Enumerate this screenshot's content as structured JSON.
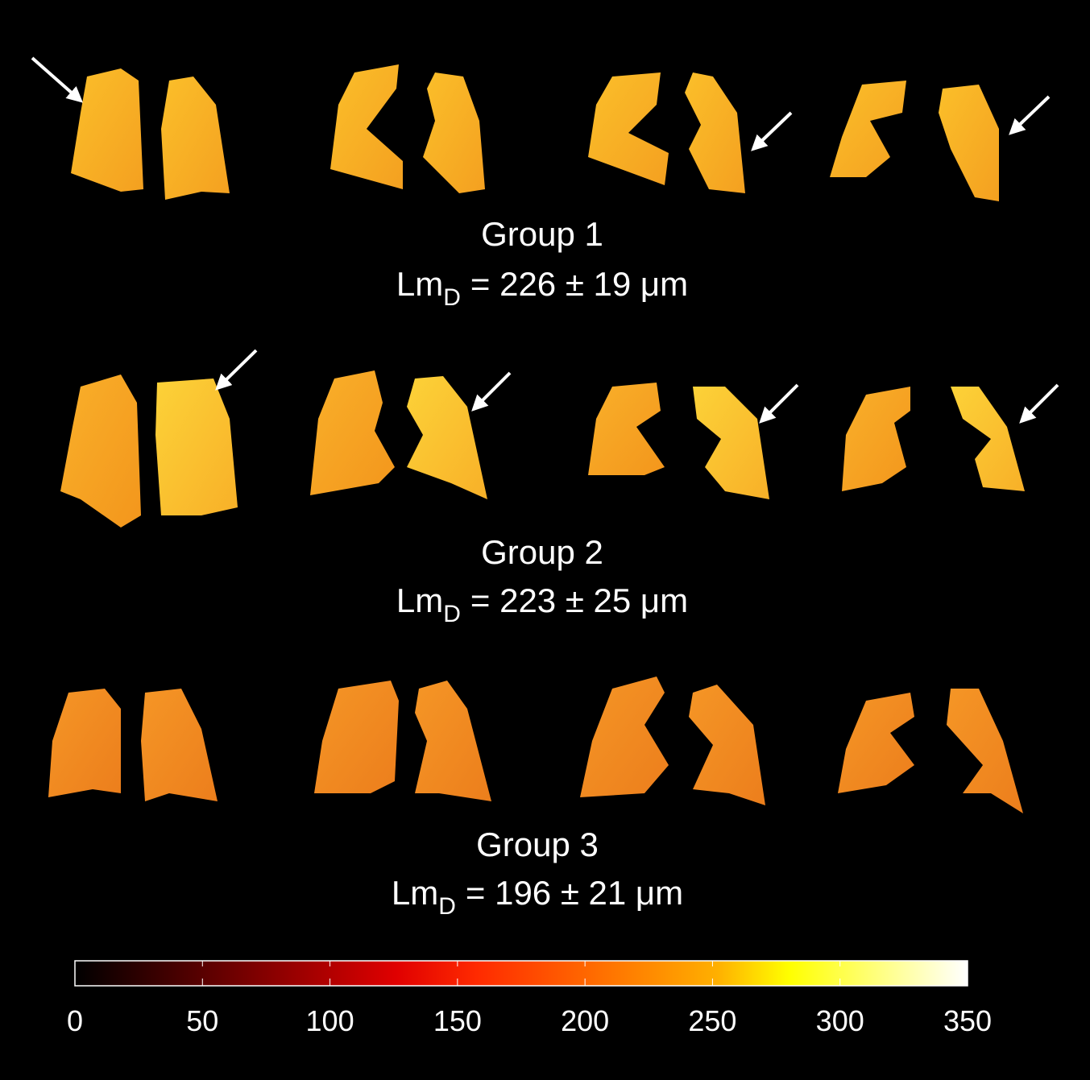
{
  "groups": [
    {
      "title": "Group 1",
      "measure": {
        "symbol": "Lm",
        "subscript": "D",
        "text": "= 226 ± 19 μm"
      }
    },
    {
      "title": "Group 2",
      "measure": {
        "symbol": "Lm",
        "subscript": "D",
        "text": "= 223 ± 25 μm"
      }
    },
    {
      "title": "Group 3",
      "measure": {
        "symbol": "Lm",
        "subscript": "D",
        "text": "= 196 ± 21 μm"
      }
    }
  ],
  "colorbar": {
    "lim": [
      0,
      350
    ],
    "ticks": [
      0,
      50,
      100,
      150,
      200,
      250,
      300,
      350
    ]
  }
}
